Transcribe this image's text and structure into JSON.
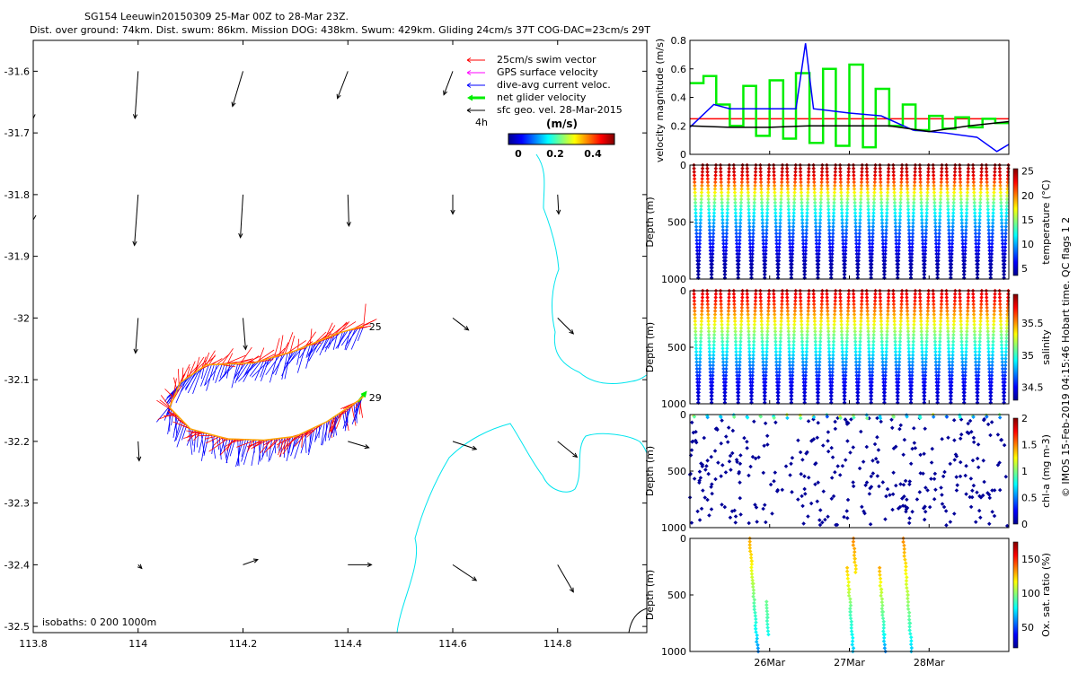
{
  "header": {
    "line1": "SG154 Leeuwin20150309 25-Mar 00Z to 28-Mar 23Z.",
    "line2": "Dist. over ground: 74km. Dist. swum: 86km. Mission DOG: 438km. Swum: 429km. Gliding 24cm/s 37T COG-DAC=23cm/s 29T"
  },
  "credit": "© IMOS 15-Feb-2019 04:15:46 Hobart time. QC flags 1  2",
  "colors": {
    "swim": "#ff0000",
    "gps": "#ff00ff",
    "dac": "#0000ff",
    "net": "#00ee00",
    "geo": "#000000",
    "coast": "#00e5ee",
    "track": "#ffa500"
  },
  "chart_data": [
    {
      "id": "map",
      "type": "scatter",
      "title": "",
      "xlim": [
        113.8,
        114.97
      ],
      "ylim": [
        -32.51,
        -31.55
      ],
      "xticks": [
        "113.8",
        "114",
        "114.2",
        "114.4",
        "114.6",
        "114.8"
      ],
      "yticks": [
        "-31.6",
        "-31.7",
        "-31.8",
        "-31.9",
        "-32",
        "-32.1",
        "-32.2",
        "-32.3",
        "-32.4",
        "-32.5"
      ],
      "legend": {
        "position": "top-right",
        "entries": [
          "25cm/s swim vector",
          "GPS surface velocity",
          "dive-avg current veloc.",
          "net glider velocity",
          "sfc geo. vel. 28-Mar-2015"
        ],
        "note": "4h"
      },
      "colorbar": {
        "label": "(m/s)",
        "ticks": [
          "0",
          "0.2",
          "0.4"
        ],
        "range": [
          0,
          0.5
        ]
      },
      "track_labels": [
        {
          "text": "25",
          "lon": 114.43,
          "lat": -32.014
        },
        {
          "text": "29",
          "lon": 114.43,
          "lat": -32.129
        }
      ],
      "isobaths_note": "isobaths: 0   200  1000m",
      "geo_vectors": [
        {
          "lon": 113.8,
          "lat": -31.6,
          "u": 0.0,
          "v": -0.09
        },
        {
          "lon": 114.0,
          "lat": -31.6,
          "u": -0.006,
          "v": -0.09
        },
        {
          "lon": 114.2,
          "lat": -31.6,
          "u": -0.02,
          "v": -0.067
        },
        {
          "lon": 114.4,
          "lat": -31.6,
          "u": -0.02,
          "v": -0.052
        },
        {
          "lon": 114.6,
          "lat": -31.6,
          "u": -0.017,
          "v": -0.045
        },
        {
          "lon": 114.0,
          "lat": -31.8,
          "u": -0.007,
          "v": -0.097
        },
        {
          "lon": 114.2,
          "lat": -31.8,
          "u": -0.005,
          "v": -0.082
        },
        {
          "lon": 114.4,
          "lat": -31.8,
          "u": 0.002,
          "v": -0.06
        },
        {
          "lon": 114.6,
          "lat": -31.8,
          "u": 0.0,
          "v": -0.037
        },
        {
          "lon": 114.8,
          "lat": -31.8,
          "u": 0.002,
          "v": -0.037
        },
        {
          "lon": 114.0,
          "lat": -32.0,
          "u": -0.005,
          "v": -0.067
        },
        {
          "lon": 114.2,
          "lat": -32.0,
          "u": 0.005,
          "v": -0.06
        },
        {
          "lon": 114.6,
          "lat": -32.0,
          "u": 0.03,
          "v": -0.023
        },
        {
          "lon": 114.8,
          "lat": -32.0,
          "u": 0.03,
          "v": -0.03
        },
        {
          "lon": 114.0,
          "lat": -32.2,
          "u": 0.002,
          "v": -0.037
        },
        {
          "lon": 114.4,
          "lat": -32.2,
          "u": 0.04,
          "v": -0.012
        },
        {
          "lon": 114.6,
          "lat": -32.2,
          "u": 0.045,
          "v": -0.015
        },
        {
          "lon": 114.8,
          "lat": -32.2,
          "u": 0.037,
          "v": -0.03
        },
        {
          "lon": 114.0,
          "lat": -32.4,
          "u": 0.007,
          "v": -0.007
        },
        {
          "lon": 114.2,
          "lat": -32.4,
          "u": 0.028,
          "v": 0.01
        },
        {
          "lon": 114.4,
          "lat": -32.4,
          "u": 0.045,
          "v": 0.0
        },
        {
          "lon": 114.6,
          "lat": -32.4,
          "u": 0.045,
          "v": -0.03
        },
        {
          "lon": 114.8,
          "lat": -32.4,
          "u": 0.03,
          "v": -0.052
        }
      ],
      "glider_track": [
        {
          "lon": 114.43,
          "lat": -32.013
        },
        {
          "lon": 114.38,
          "lat": -32.025
        },
        {
          "lon": 114.3,
          "lat": -32.053
        },
        {
          "lon": 114.22,
          "lat": -32.073
        },
        {
          "lon": 114.13,
          "lat": -32.076
        },
        {
          "lon": 114.08,
          "lat": -32.105
        },
        {
          "lon": 114.06,
          "lat": -32.145
        },
        {
          "lon": 114.1,
          "lat": -32.18
        },
        {
          "lon": 114.17,
          "lat": -32.196
        },
        {
          "lon": 114.24,
          "lat": -32.198
        },
        {
          "lon": 114.3,
          "lat": -32.192
        },
        {
          "lon": 114.36,
          "lat": -32.168
        },
        {
          "lon": 114.42,
          "lat": -32.134
        },
        {
          "lon": 114.43,
          "lat": -32.127
        }
      ]
    },
    {
      "id": "velocity",
      "type": "line",
      "xlabel": "",
      "ylabel": "velocity magnitude (m/s)",
      "xlim": [
        25.0,
        29.0
      ],
      "ylim": [
        0,
        0.8
      ],
      "yticks": [
        "0",
        "0.2",
        "0.4",
        "0.6",
        "0.8"
      ],
      "series": [
        {
          "name": "swim 25cm/s",
          "color": "#ff0000",
          "x": [
            25.0,
            29.0
          ],
          "y": [
            0.25,
            0.25
          ]
        },
        {
          "name": "net glider velocity",
          "color": "#00ee00",
          "x": [
            25.0,
            25.17,
            25.17,
            25.33,
            25.33,
            25.5,
            25.5,
            25.67,
            25.67,
            25.83,
            25.83,
            26.0,
            26.0,
            26.17,
            26.17,
            26.33,
            26.33,
            26.5,
            26.5,
            26.67,
            26.67,
            26.83,
            26.83,
            27.0,
            27.0,
            27.17,
            27.17,
            27.33,
            27.33,
            27.5,
            27.5,
            27.67,
            27.67,
            27.83,
            27.83,
            28.0,
            28.0,
            28.17,
            28.17,
            28.33,
            28.33,
            28.5,
            28.5,
            28.67,
            28.67,
            28.83,
            28.83,
            29.0
          ],
          "y": [
            0.5,
            0.5,
            0.55,
            0.55,
            0.35,
            0.35,
            0.2,
            0.2,
            0.48,
            0.48,
            0.13,
            0.13,
            0.52,
            0.52,
            0.11,
            0.11,
            0.57,
            0.57,
            0.08,
            0.08,
            0.6,
            0.6,
            0.06,
            0.06,
            0.63,
            0.63,
            0.05,
            0.05,
            0.46,
            0.46,
            0.2,
            0.2,
            0.35,
            0.35,
            0.17,
            0.17,
            0.27,
            0.27,
            0.18,
            0.18,
            0.26,
            0.26,
            0.19,
            0.19,
            0.25,
            0.25,
            0.22,
            0.22
          ]
        },
        {
          "name": "dive-avg current",
          "color": "#0000ff",
          "x": [
            25.0,
            25.3,
            25.5,
            25.9,
            26.33,
            26.45,
            26.55,
            26.7,
            27.0,
            27.4,
            27.8,
            28.2,
            28.6,
            28.85,
            29.0
          ],
          "y": [
            0.19,
            0.35,
            0.32,
            0.32,
            0.32,
            0.78,
            0.32,
            0.31,
            0.29,
            0.27,
            0.17,
            0.15,
            0.12,
            0.02,
            0.07
          ]
        },
        {
          "name": "sfc geo. vel.",
          "color": "#000000",
          "x": [
            25.0,
            25.5,
            26.0,
            26.5,
            27.0,
            27.5,
            28.0,
            28.5,
            29.0
          ],
          "y": [
            0.2,
            0.19,
            0.19,
            0.2,
            0.2,
            0.2,
            0.16,
            0.2,
            0.23
          ]
        }
      ]
    },
    {
      "id": "temperature",
      "type": "scatter",
      "ylabel": "Depth (m)",
      "colorbar_label": "temperature (°C)",
      "clim": [
        3.5,
        25.5
      ],
      "cticks": [
        "5",
        "10",
        "15",
        "20",
        "25"
      ],
      "ylim": [
        0,
        1000
      ],
      "yticks": [
        "0",
        "500",
        "1000"
      ],
      "profile": {
        "depth": [
          0,
          100,
          200,
          300,
          400,
          500,
          600,
          700,
          800,
          900,
          1000
        ],
        "value": [
          25,
          23,
          19,
          15,
          12,
          10,
          8,
          6.5,
          5,
          4.3,
          4
        ]
      }
    },
    {
      "id": "salinity",
      "type": "scatter",
      "ylabel": "Depth (m)",
      "colorbar_label": "salinity",
      "clim": [
        34.3,
        35.95
      ],
      "cticks": [
        "34.5",
        "35",
        "35.5"
      ],
      "ylim": [
        0,
        1000
      ],
      "yticks": [
        "0",
        "500",
        "1000"
      ],
      "profile": {
        "depth": [
          0,
          100,
          200,
          300,
          400,
          500,
          600,
          700,
          800,
          900,
          1000
        ],
        "value": [
          35.8,
          35.7,
          35.5,
          35.3,
          35.1,
          34.95,
          34.8,
          34.65,
          34.5,
          34.45,
          34.4
        ]
      }
    },
    {
      "id": "chla",
      "type": "scatter",
      "ylabel": "Depth (m)",
      "colorbar_label": "chl-a (mg m-3)",
      "clim": [
        0,
        2
      ],
      "cticks": [
        "0",
        "0.5",
        "1",
        "1.5",
        "2"
      ],
      "ylim": [
        0,
        1000
      ],
      "yticks": [
        "0",
        "500",
        "1000"
      ]
    },
    {
      "id": "oxygen",
      "type": "scatter",
      "ylabel": "Depth (m)",
      "colorbar_label": "Ox. sat. ratio (%)",
      "clim": [
        20,
        175
      ],
      "cticks": [
        "50",
        "100",
        "150"
      ],
      "ylim": [
        0,
        1000
      ],
      "yticks": [
        "0",
        "500",
        "1000"
      ],
      "xticks": [
        "26Mar",
        "27Mar",
        "28Mar"
      ],
      "profiles": [
        {
          "t0": 25.75,
          "points": [
            [
              0,
              130
            ],
            [
              200,
              120
            ],
            [
              400,
              105
            ],
            [
              600,
              90
            ],
            [
              800,
              80
            ],
            [
              1000,
              60
            ]
          ]
        },
        {
          "t0": 25.9,
          "points": [
            [
              560,
              95
            ],
            [
              700,
              90
            ],
            [
              850,
              80
            ]
          ]
        },
        {
          "t0": 26.95,
          "points": [
            [
              260,
              125
            ],
            [
              450,
              110
            ],
            [
              650,
              90
            ],
            [
              850,
              80
            ],
            [
              1000,
              70
            ]
          ]
        },
        {
          "t0": 27.05,
          "points": [
            [
              0,
              135
            ],
            [
              180,
              125
            ],
            [
              300,
              120
            ]
          ]
        },
        {
          "t0": 27.35,
          "points": [
            [
              260,
              130
            ],
            [
              450,
              110
            ],
            [
              650,
              95
            ],
            [
              850,
              80
            ],
            [
              1000,
              60
            ]
          ]
        },
        {
          "t0": 27.68,
          "points": [
            [
              0,
              135
            ],
            [
              250,
              120
            ],
            [
              500,
              105
            ],
            [
              750,
              90
            ],
            [
              1000,
              70
            ]
          ]
        }
      ]
    }
  ]
}
